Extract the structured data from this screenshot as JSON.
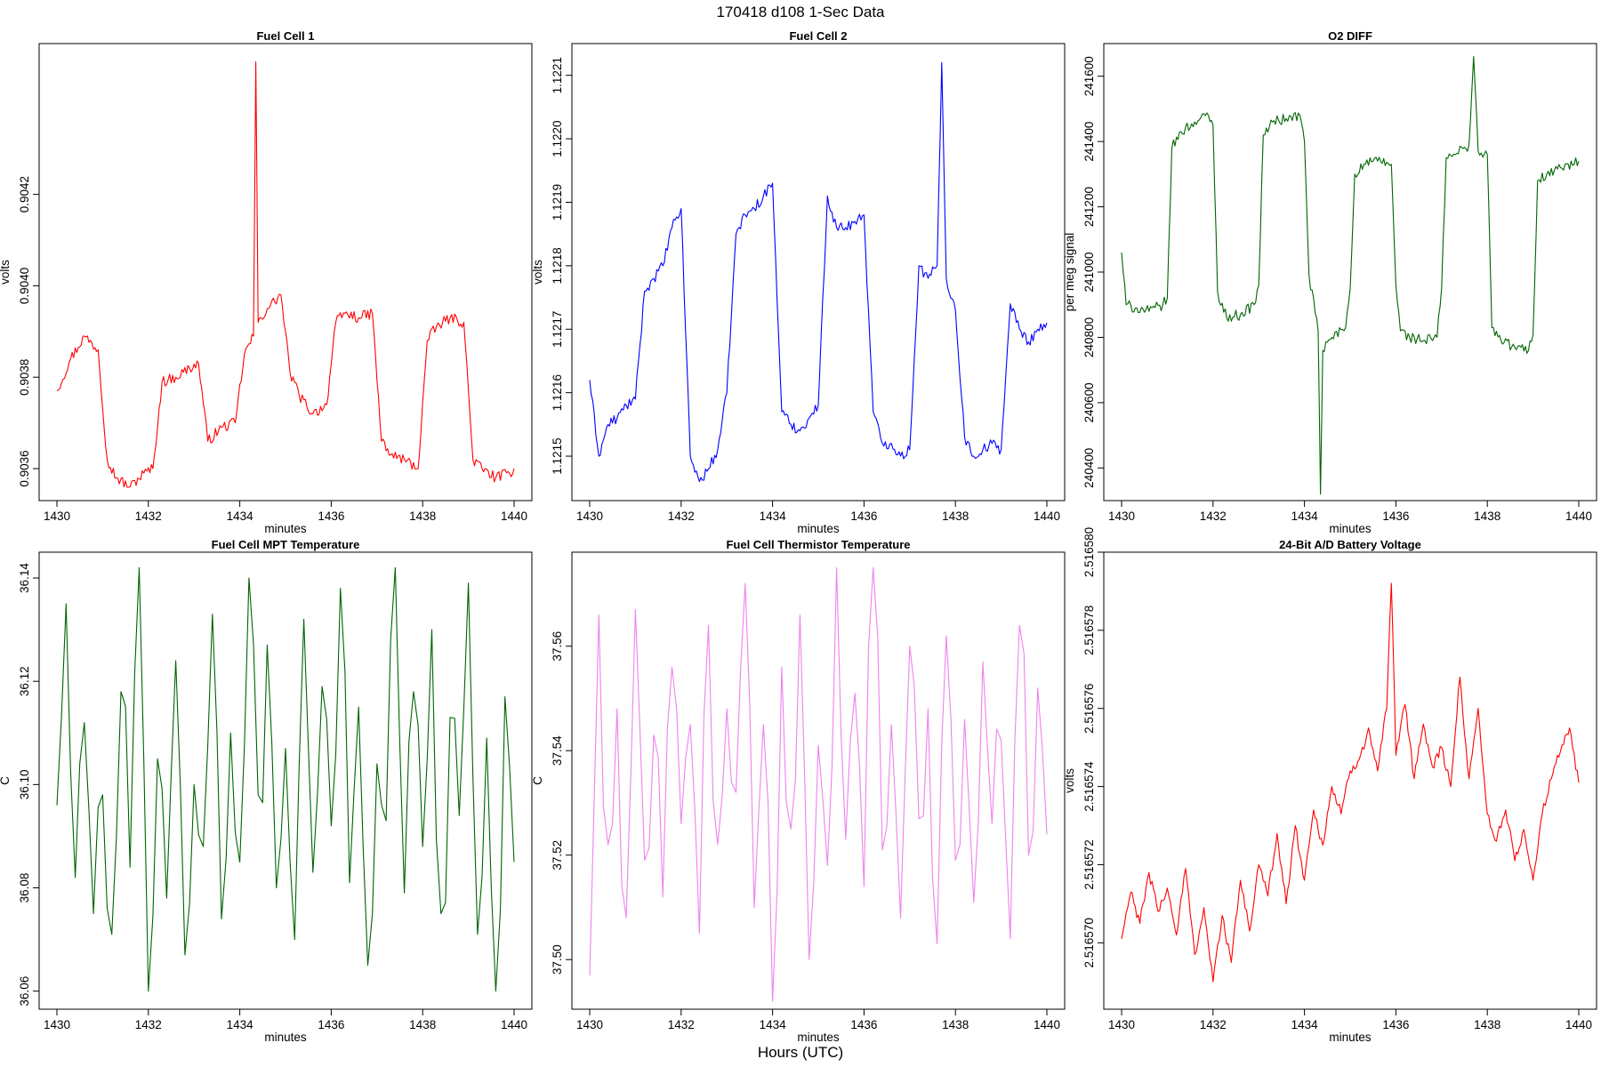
{
  "figure": {
    "suptitle": "170418   d108   1-Sec Data",
    "outer_xlabel": "Hours (UTC)"
  },
  "chart_data": [
    {
      "type": "line",
      "title": "Fuel Cell 1",
      "xlabel": "minutes",
      "ylabel": "volts",
      "color": "#ff0000",
      "xlim": [
        1430,
        1440
      ],
      "ylim": [
        0.90353,
        0.90453
      ],
      "xticks": [
        "1430",
        "1432",
        "1434",
        "1436",
        "1438",
        "1440"
      ],
      "yticks": [
        "0.9036",
        "0.9038",
        "0.9040",
        "0.9042"
      ],
      "series": [
        {
          "x": [
            1430.0,
            1430.3,
            1430.6,
            1430.9,
            1431.1,
            1431.3,
            1431.6,
            1431.9,
            1432.1,
            1432.3,
            1432.6,
            1432.9,
            1433.1,
            1433.3,
            1433.6,
            1433.9,
            1434.1,
            1434.3,
            1434.35,
            1434.4,
            1434.6,
            1434.9,
            1435.1,
            1435.3,
            1435.6,
            1435.9,
            1436.1,
            1436.3,
            1436.6,
            1436.9,
            1437.1,
            1437.3,
            1437.6,
            1437.9,
            1438.1,
            1438.3,
            1438.6,
            1438.9,
            1439.1,
            1439.3,
            1439.6,
            1439.9,
            1440.0
          ],
          "y": [
            0.90377,
            0.90384,
            0.90389,
            0.90386,
            0.90362,
            0.90358,
            0.90356,
            0.90359,
            0.9036,
            0.90379,
            0.9038,
            0.90382,
            0.90383,
            0.90366,
            0.90369,
            0.9037,
            0.90385,
            0.90389,
            0.90449,
            0.90392,
            0.90395,
            0.90398,
            0.90381,
            0.90376,
            0.90372,
            0.90374,
            0.90392,
            0.90394,
            0.90393,
            0.90394,
            0.90366,
            0.90363,
            0.90362,
            0.9036,
            0.90388,
            0.90391,
            0.90393,
            0.90392,
            0.90362,
            0.9036,
            0.90358,
            0.90359,
            0.9036
          ]
        }
      ]
    },
    {
      "type": "line",
      "title": "Fuel Cell 2",
      "xlabel": "minutes",
      "ylabel": "volts",
      "color": "#0000ff",
      "xlim": [
        1430,
        1440
      ],
      "ylim": [
        1.12143,
        1.12215
      ],
      "xticks": [
        "1430",
        "1432",
        "1434",
        "1436",
        "1438",
        "1440"
      ],
      "yticks": [
        "1.1215",
        "1.1216",
        "1.1217",
        "1.1218",
        "1.1219",
        "1.1220",
        "1.1221"
      ],
      "series": [
        {
          "x": [
            1430.0,
            1430.2,
            1430.4,
            1430.6,
            1430.8,
            1431.0,
            1431.2,
            1431.4,
            1431.6,
            1431.8,
            1432.0,
            1432.2,
            1432.4,
            1432.6,
            1432.8,
            1433.0,
            1433.2,
            1433.4,
            1433.6,
            1433.8,
            1434.0,
            1434.2,
            1434.4,
            1434.6,
            1434.8,
            1435.0,
            1435.2,
            1435.4,
            1435.6,
            1435.8,
            1436.0,
            1436.2,
            1436.4,
            1436.6,
            1436.8,
            1437.0,
            1437.2,
            1437.4,
            1437.6,
            1437.7,
            1437.8,
            1438.0,
            1438.2,
            1438.4,
            1438.6,
            1438.8,
            1439.0,
            1439.2,
            1439.4,
            1439.6,
            1439.8,
            1440.0
          ],
          "y": [
            1.12162,
            1.1215,
            1.12155,
            1.12156,
            1.12158,
            1.12159,
            1.12176,
            1.12178,
            1.1218,
            1.12186,
            1.12189,
            1.1215,
            1.12146,
            1.12148,
            1.12151,
            1.1216,
            1.12185,
            1.12188,
            1.12189,
            1.12191,
            1.12193,
            1.12157,
            1.12155,
            1.12154,
            1.12156,
            1.12158,
            1.12191,
            1.12186,
            1.12186,
            1.12187,
            1.12188,
            1.12157,
            1.12152,
            1.12152,
            1.1215,
            1.12151,
            1.1218,
            1.12178,
            1.1218,
            1.12212,
            1.12178,
            1.12173,
            1.12153,
            1.1215,
            1.12151,
            1.12152,
            1.12151,
            1.12174,
            1.1217,
            1.12168,
            1.1217,
            1.12171
          ]
        }
      ]
    },
    {
      "type": "line",
      "title": "O2 DIFF",
      "xlabel": "minutes",
      "ylabel": "per meg signal",
      "color": "#006400",
      "xlim": [
        1430,
        1440
      ],
      "ylim": [
        240300,
        241700
      ],
      "xticks": [
        "1430",
        "1432",
        "1434",
        "1436",
        "1438",
        "1440"
      ],
      "yticks": [
        "240400",
        "240600",
        "240800",
        "241000",
        "241200",
        "241400",
        "241600"
      ],
      "series": [
        {
          "x": [
            1430.0,
            1430.1,
            1430.3,
            1430.6,
            1430.9,
            1431.0,
            1431.1,
            1431.3,
            1431.6,
            1431.9,
            1432.0,
            1432.1,
            1432.3,
            1432.6,
            1432.9,
            1433.0,
            1433.1,
            1433.3,
            1433.6,
            1433.9,
            1434.0,
            1434.1,
            1434.3,
            1434.35,
            1434.4,
            1434.6,
            1434.9,
            1435.0,
            1435.1,
            1435.3,
            1435.6,
            1435.9,
            1436.0,
            1436.1,
            1436.3,
            1436.6,
            1436.9,
            1437.0,
            1437.1,
            1437.3,
            1437.6,
            1437.7,
            1437.8,
            1438.0,
            1438.1,
            1438.3,
            1438.6,
            1438.9,
            1439.0,
            1439.1,
            1439.3,
            1439.6,
            1439.9,
            1440.0
          ],
          "y": [
            241060,
            240900,
            240890,
            240880,
            240900,
            240920,
            241380,
            241430,
            241460,
            241480,
            241450,
            240940,
            240860,
            240870,
            240900,
            240960,
            241420,
            241460,
            241470,
            241480,
            241400,
            240990,
            240820,
            240320,
            240760,
            240800,
            240830,
            240950,
            241300,
            241330,
            241340,
            241330,
            240960,
            240820,
            240800,
            240790,
            240800,
            240950,
            241350,
            241360,
            241390,
            241660,
            241370,
            241360,
            240830,
            240790,
            240770,
            240760,
            240810,
            241280,
            241300,
            241320,
            241330,
            241340
          ]
        }
      ]
    },
    {
      "type": "line",
      "title": "Fuel Cell MPT Temperature",
      "xlabel": "minutes",
      "ylabel": "C",
      "color": "#006400",
      "xlim": [
        1430,
        1440
      ],
      "ylim": [
        36.0565,
        36.145
      ],
      "xticks": [
        "1430",
        "1432",
        "1434",
        "1436",
        "1438",
        "1440"
      ],
      "yticks": [
        "36.06",
        "36.08",
        "36.10",
        "36.12",
        "36.14"
      ],
      "series": [
        {
          "x": [
            1430.0,
            1430.2,
            1430.4,
            1430.6,
            1430.8,
            1431.0,
            1431.2,
            1431.4,
            1431.6,
            1431.8,
            1432.0,
            1432.2,
            1432.4,
            1432.6,
            1432.8,
            1433.0,
            1433.2,
            1433.4,
            1433.6,
            1433.8,
            1434.0,
            1434.2,
            1434.4,
            1434.6,
            1434.8,
            1435.0,
            1435.2,
            1435.4,
            1435.6,
            1435.8,
            1436.0,
            1436.2,
            1436.4,
            1436.6,
            1436.8,
            1437.0,
            1437.2,
            1437.4,
            1437.6,
            1437.8,
            1438.0,
            1438.2,
            1438.4,
            1438.6,
            1438.8,
            1439.0,
            1439.2,
            1439.4,
            1439.6,
            1439.8,
            1440.0
          ],
          "y": [
            36.096,
            36.135,
            36.082,
            36.112,
            36.075,
            36.098,
            36.071,
            36.118,
            36.084,
            36.142,
            36.06,
            36.105,
            36.078,
            36.124,
            36.067,
            36.1,
            36.088,
            36.133,
            36.074,
            36.11,
            36.085,
            36.14,
            36.098,
            36.127,
            36.08,
            36.107,
            36.07,
            36.132,
            36.083,
            36.119,
            36.092,
            36.138,
            36.081,
            36.115,
            36.065,
            36.104,
            36.093,
            36.142,
            36.079,
            36.118,
            36.088,
            36.13,
            36.075,
            36.113,
            36.094,
            36.139,
            36.071,
            36.109,
            36.06,
            36.117,
            36.085
          ]
        }
      ]
    },
    {
      "type": "line",
      "title": "Fuel Cell Thermistor Temperature",
      "xlabel": "minutes",
      "ylabel": "C",
      "color": "#ee82ee",
      "xlim": [
        1430,
        1440
      ],
      "ylim": [
        37.4905,
        37.578
      ],
      "xticks": [
        "1430",
        "1432",
        "1434",
        "1436",
        "1438",
        "1440"
      ],
      "yticks": [
        "37.50",
        "37.52",
        "37.54",
        "37.56"
      ],
      "series": [
        {
          "x": [
            1430.0,
            1430.2,
            1430.4,
            1430.6,
            1430.8,
            1431.0,
            1431.2,
            1431.4,
            1431.6,
            1431.8,
            1432.0,
            1432.2,
            1432.4,
            1432.6,
            1432.8,
            1433.0,
            1433.2,
            1433.4,
            1433.6,
            1433.8,
            1434.0,
            1434.2,
            1434.4,
            1434.6,
            1434.8,
            1435.0,
            1435.2,
            1435.4,
            1435.6,
            1435.8,
            1436.0,
            1436.2,
            1436.4,
            1436.6,
            1436.8,
            1437.0,
            1437.2,
            1437.4,
            1437.6,
            1437.8,
            1438.0,
            1438.2,
            1438.4,
            1438.6,
            1438.8,
            1439.0,
            1439.2,
            1439.4,
            1439.6,
            1439.8,
            1440.0
          ],
          "y": [
            37.497,
            37.566,
            37.522,
            37.548,
            37.508,
            37.567,
            37.519,
            37.543,
            37.512,
            37.556,
            37.526,
            37.545,
            37.505,
            37.564,
            37.522,
            37.548,
            37.532,
            37.572,
            37.51,
            37.545,
            37.492,
            37.556,
            37.525,
            37.566,
            37.5,
            37.541,
            37.518,
            37.575,
            37.523,
            37.551,
            37.514,
            37.575,
            37.521,
            37.545,
            37.508,
            37.56,
            37.527,
            37.548,
            37.503,
            37.562,
            37.519,
            37.546,
            37.511,
            37.557,
            37.526,
            37.542,
            37.504,
            37.564,
            37.52,
            37.552,
            37.524
          ]
        }
      ]
    },
    {
      "type": "line",
      "title": "24-Bit A/D Battery Voltage",
      "xlabel": "minutes",
      "ylabel": "volts",
      "color": "#ff0000",
      "xlim": [
        1430,
        1440
      ],
      "ylim": [
        2.5165683,
        2.51658
      ],
      "xticks": [
        "1430",
        "1432",
        "1434",
        "1436",
        "1438",
        "1440"
      ],
      "yticks": [
        "2.516570",
        "2.516572",
        "2.516574",
        "2.516576",
        "2.516578",
        "2.516580"
      ],
      "series": [
        {
          "x": [
            1430.0,
            1430.2,
            1430.4,
            1430.6,
            1430.8,
            1431.0,
            1431.2,
            1431.4,
            1431.6,
            1431.8,
            1432.0,
            1432.2,
            1432.4,
            1432.6,
            1432.8,
            1433.0,
            1433.2,
            1433.4,
            1433.6,
            1433.8,
            1434.0,
            1434.2,
            1434.4,
            1434.6,
            1434.8,
            1435.0,
            1435.2,
            1435.4,
            1435.6,
            1435.8,
            1435.9,
            1436.0,
            1436.2,
            1436.4,
            1436.6,
            1436.8,
            1437.0,
            1437.2,
            1437.4,
            1437.6,
            1437.8,
            1438.0,
            1438.2,
            1438.4,
            1438.6,
            1438.8,
            1439.0,
            1439.2,
            1439.4,
            1439.6,
            1439.8,
            1440.0
          ],
          "y": [
            2.5165701,
            2.5165713,
            2.5165705,
            2.5165718,
            2.5165708,
            2.5165714,
            2.5165702,
            2.5165719,
            2.5165697,
            2.5165709,
            2.516569,
            2.5165707,
            2.5165695,
            2.5165716,
            2.5165703,
            2.516572,
            2.5165712,
            2.5165728,
            2.516571,
            2.516573,
            2.5165716,
            2.5165734,
            2.5165725,
            2.516574,
            2.5165733,
            2.5165744,
            2.5165747,
            2.5165755,
            2.5165744,
            2.516576,
            2.5165792,
            2.5165748,
            2.5165761,
            2.5165742,
            2.5165756,
            2.5165745,
            2.516575,
            2.516574,
            2.5165768,
            2.5165742,
            2.516576,
            2.5165733,
            2.5165726,
            2.5165734,
            2.5165721,
            2.5165729,
            2.5165716,
            2.5165733,
            2.5165742,
            2.5165749,
            2.5165755,
            2.5165741
          ]
        }
      ]
    }
  ]
}
